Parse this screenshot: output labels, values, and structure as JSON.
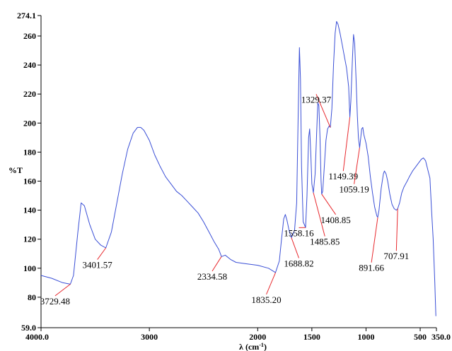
{
  "chart_data": {
    "type": "line",
    "ylabel": "%T",
    "xlabel": "λ (cm",
    "xlabel_sup": "-1",
    "xlabel_suffix": ")",
    "xlim": [
      4000.0,
      350.0
    ],
    "ylim": [
      59.0,
      274.1
    ],
    "x_ticks": [
      {
        "value": 4000,
        "label": "4000.0"
      },
      {
        "value": 3000,
        "label": "3000"
      },
      {
        "value": 2000,
        "label": "2000"
      },
      {
        "value": 1500,
        "label": "1500"
      },
      {
        "value": 1000,
        "label": "1000"
      },
      {
        "value": 500,
        "label": "500"
      },
      {
        "value": 350,
        "label": "350.0"
      }
    ],
    "y_ticks": [
      {
        "value": 59.0,
        "label": "59.0"
      },
      {
        "value": 80,
        "label": "80"
      },
      {
        "value": 100,
        "label": "100"
      },
      {
        "value": 120,
        "label": "120"
      },
      {
        "value": 140,
        "label": "140"
      },
      {
        "value": 160,
        "label": "160"
      },
      {
        "value": 180,
        "label": "180"
      },
      {
        "value": 200,
        "label": "200"
      },
      {
        "value": 220,
        "label": "220"
      },
      {
        "value": 240,
        "label": "240"
      },
      {
        "value": 260,
        "label": "260"
      },
      {
        "value": 274.1,
        "label": "274.1"
      }
    ],
    "series": [
      {
        "color": "#3a4fd6",
        "points": [
          [
            4000,
            95
          ],
          [
            3900,
            93
          ],
          [
            3800,
            90
          ],
          [
            3729.48,
            89
          ],
          [
            3700,
            95
          ],
          [
            3660,
            125
          ],
          [
            3630,
            145
          ],
          [
            3600,
            143
          ],
          [
            3550,
            130
          ],
          [
            3500,
            120
          ],
          [
            3450,
            116
          ],
          [
            3401.57,
            114
          ],
          [
            3350,
            125
          ],
          [
            3300,
            145
          ],
          [
            3250,
            165
          ],
          [
            3200,
            182
          ],
          [
            3150,
            193
          ],
          [
            3110,
            197
          ],
          [
            3080,
            197
          ],
          [
            3050,
            195
          ],
          [
            3000,
            188
          ],
          [
            2950,
            178
          ],
          [
            2900,
            170
          ],
          [
            2850,
            163
          ],
          [
            2800,
            158
          ],
          [
            2750,
            153
          ],
          [
            2700,
            150
          ],
          [
            2650,
            146
          ],
          [
            2600,
            142
          ],
          [
            2550,
            138
          ],
          [
            2500,
            132
          ],
          [
            2450,
            125
          ],
          [
            2400,
            118
          ],
          [
            2360,
            113
          ],
          [
            2334.58,
            108
          ],
          [
            2300,
            109
          ],
          [
            2250,
            106
          ],
          [
            2200,
            104
          ],
          [
            2100,
            103
          ],
          [
            2000,
            102
          ],
          [
            1900,
            100
          ],
          [
            1835.2,
            97
          ],
          [
            1800,
            105
          ],
          [
            1780,
            120
          ],
          [
            1760,
            134
          ],
          [
            1745,
            137
          ],
          [
            1730,
            133
          ],
          [
            1710,
            126
          ],
          [
            1688.82,
            121
          ],
          [
            1660,
            126
          ],
          [
            1640,
            145
          ],
          [
            1625,
            210
          ],
          [
            1615,
            252
          ],
          [
            1605,
            230
          ],
          [
            1595,
            170
          ],
          [
            1580,
            132
          ],
          [
            1558.16,
            128
          ],
          [
            1545,
            150
          ],
          [
            1530,
            190
          ],
          [
            1520,
            196
          ],
          [
            1510,
            180
          ],
          [
            1500,
            158
          ],
          [
            1485.85,
            152
          ],
          [
            1470,
            165
          ],
          [
            1455,
            195
          ],
          [
            1445,
            214
          ],
          [
            1435,
            212
          ],
          [
            1425,
            190
          ],
          [
            1415,
            160
          ],
          [
            1408.85,
            151
          ],
          [
            1400,
            153
          ],
          [
            1385,
            170
          ],
          [
            1370,
            188
          ],
          [
            1355,
            196
          ],
          [
            1340,
            198
          ],
          [
            1329.37,
            197
          ],
          [
            1315,
            210
          ],
          [
            1300,
            240
          ],
          [
            1285,
            262
          ],
          [
            1272,
            270
          ],
          [
            1258,
            268
          ],
          [
            1240,
            262
          ],
          [
            1220,
            254
          ],
          [
            1200,
            246
          ],
          [
            1180,
            238
          ],
          [
            1160,
            225
          ],
          [
            1149.39,
            204
          ],
          [
            1140,
            215
          ],
          [
            1125,
            245
          ],
          [
            1115,
            261
          ],
          [
            1105,
            255
          ],
          [
            1092,
            230
          ],
          [
            1080,
            205
          ],
          [
            1070,
            190
          ],
          [
            1059.19,
            183
          ],
          [
            1050,
            189
          ],
          [
            1040,
            196
          ],
          [
            1030,
            197
          ],
          [
            1020,
            192
          ],
          [
            1000,
            186
          ],
          [
            980,
            177
          ],
          [
            960,
            163
          ],
          [
            940,
            152
          ],
          [
            920,
            142
          ],
          [
            900,
            136
          ],
          [
            891.66,
            135
          ],
          [
            880,
            140
          ],
          [
            860,
            155
          ],
          [
            840,
            165
          ],
          [
            830,
            167
          ],
          [
            815,
            165
          ],
          [
            800,
            160
          ],
          [
            780,
            151
          ],
          [
            760,
            144
          ],
          [
            740,
            141
          ],
          [
            720,
            140
          ],
          [
            707.91,
            141
          ],
          [
            690,
            145
          ],
          [
            670,
            152
          ],
          [
            650,
            156
          ],
          [
            620,
            160
          ],
          [
            600,
            163
          ],
          [
            570,
            167
          ],
          [
            540,
            170
          ],
          [
            510,
            173
          ],
          [
            490,
            175
          ],
          [
            470,
            176
          ],
          [
            450,
            174
          ],
          [
            430,
            168
          ],
          [
            410,
            162
          ],
          [
            395,
            140
          ],
          [
            380,
            120
          ],
          [
            365,
            90
          ],
          [
            355,
            67
          ]
        ]
      }
    ],
    "annotations": [
      {
        "label": "3729.48",
        "x": 3729.48,
        "y": 89,
        "tx": 3870,
        "ty": 79
      },
      {
        "label": "3401.57",
        "x": 3401.57,
        "y": 114,
        "tx": 3480,
        "ty": 104
      },
      {
        "label": "2334.58",
        "x": 2334.58,
        "y": 108,
        "tx": 2420,
        "ty": 96
      },
      {
        "label": "1835.20",
        "x": 1835.2,
        "y": 97,
        "tx": 1920,
        "ty": 80
      },
      {
        "label": "1688.82",
        "x": 1688.82,
        "y": 121,
        "tx": 1620,
        "ty": 105
      },
      {
        "label": "1558.16",
        "x": 1558.16,
        "y": 128,
        "tx": 1620,
        "ty": 126
      },
      {
        "label": "1485.85",
        "x": 1485.85,
        "y": 152,
        "tx": 1380,
        "ty": 120
      },
      {
        "label": "1408.85",
        "x": 1408.85,
        "y": 151,
        "tx": 1280,
        "ty": 135
      },
      {
        "label": "1329.37",
        "x": 1329.37,
        "y": 197,
        "tx": 1460,
        "ty": 218
      },
      {
        "label": "1149.39",
        "x": 1149.39,
        "y": 204,
        "tx": 1210,
        "ty": 165
      },
      {
        "label": "1059.19",
        "x": 1059.19,
        "y": 183,
        "tx": 1110,
        "ty": 156
      },
      {
        "label": "891.66",
        "x": 891.66,
        "y": 135,
        "tx": 950,
        "ty": 102
      },
      {
        "label": "707.91",
        "x": 707.91,
        "y": 141,
        "tx": 720,
        "ty": 110
      }
    ]
  }
}
